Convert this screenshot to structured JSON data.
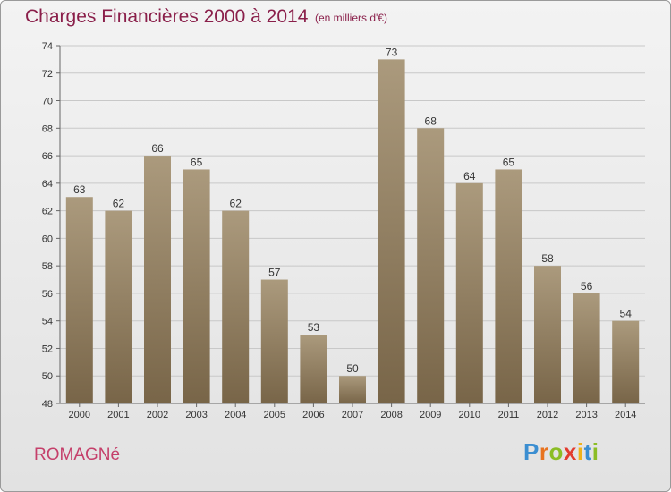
{
  "title": "Charges Financières 2000 à 2014",
  "subtitle": "(en milliers d'€)",
  "commune": "ROMAGNé",
  "logo": {
    "letters": [
      "P",
      "r",
      "o",
      "x",
      "i",
      "t",
      "i"
    ],
    "colors": [
      "#3b8ed1",
      "#e8731f",
      "#8bbd25",
      "#e23b2e",
      "#f0b21a",
      "#3b8ed1",
      "#8bbd25"
    ]
  },
  "chart_data": {
    "type": "bar",
    "categories": [
      "2000",
      "2001",
      "2002",
      "2003",
      "2004",
      "2005",
      "2006",
      "2007",
      "2008",
      "2009",
      "2010",
      "2011",
      "2012",
      "2013",
      "2014"
    ],
    "values": [
      63,
      62,
      66,
      65,
      62,
      57,
      53,
      50,
      73,
      68,
      64,
      65,
      58,
      56,
      54
    ],
    "ylim": [
      48,
      74
    ],
    "yticks": [
      48,
      50,
      52,
      54,
      56,
      58,
      60,
      62,
      64,
      66,
      68,
      70,
      72,
      74
    ],
    "grid": true,
    "bar_color_top": "#ab9a7d",
    "bar_color_bottom": "#786548",
    "grid_color": "#c8c8c8",
    "text_color": "#333333"
  }
}
